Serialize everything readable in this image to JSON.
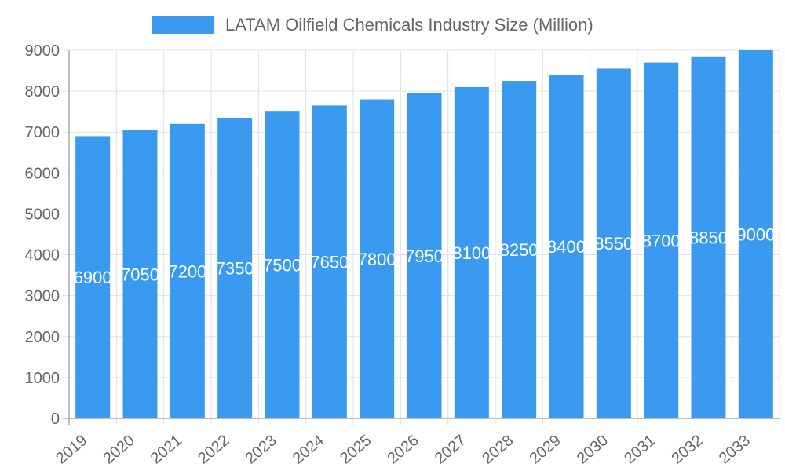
{
  "chart_data": {
    "type": "bar",
    "title": "",
    "legend": {
      "label": "LATAM Oilfield Chemicals Industry Size (Million)",
      "placement": "top"
    },
    "categories": [
      "2019",
      "2020",
      "2021",
      "2022",
      "2023",
      "2024",
      "2025",
      "2026",
      "2027",
      "2028",
      "2029",
      "2030",
      "2031",
      "2032",
      "2033"
    ],
    "series": [
      {
        "name": "LATAM Oilfield Chemicals Industry Size (Million)",
        "values": [
          6900,
          7050,
          7200,
          7350,
          7500,
          7650,
          7800,
          7950,
          8100,
          8250,
          8400,
          8550,
          8700,
          8850,
          9000
        ]
      }
    ],
    "xlabel": "",
    "ylabel": "",
    "ylim": [
      0,
      9000
    ],
    "yticks": [
      0,
      1000,
      2000,
      3000,
      4000,
      5000,
      6000,
      7000,
      8000,
      9000
    ],
    "grid": true,
    "data_labels": true,
    "colors": {
      "bar": "#399af0",
      "grid": "#e0e0e0",
      "axis": "#aaaaaa",
      "text": "#666666",
      "label": "#ffffff"
    }
  }
}
